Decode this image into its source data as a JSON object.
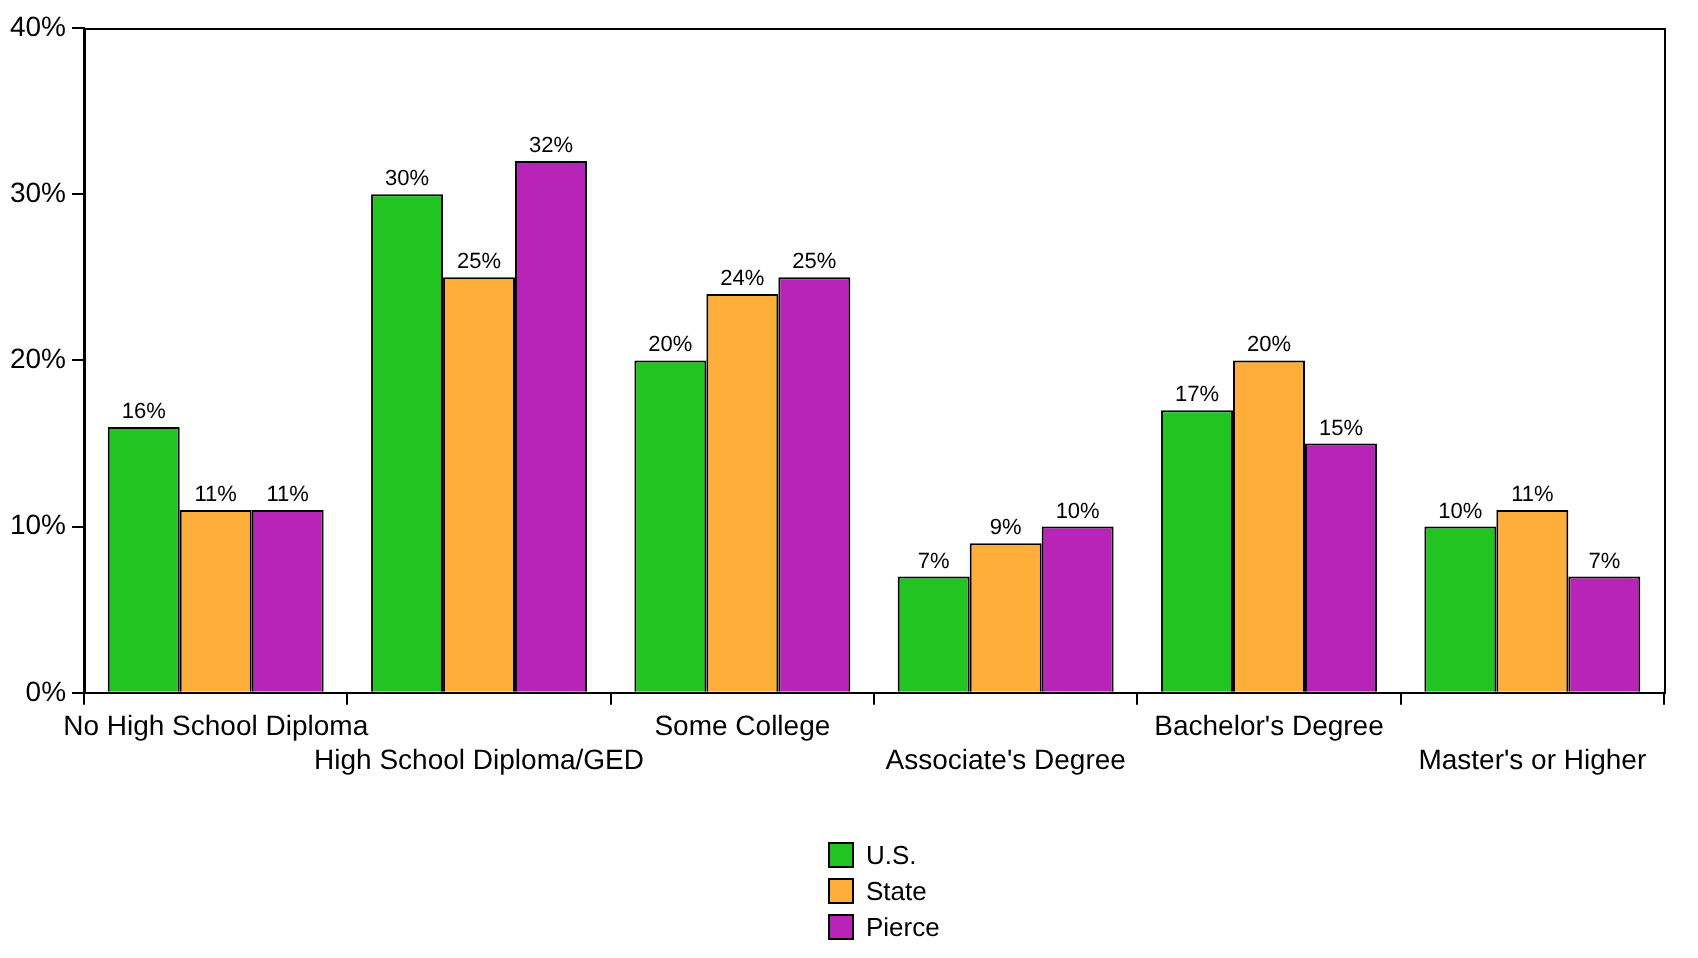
{
  "chart_data": {
    "type": "bar",
    "categories": [
      "No High School Diploma",
      "High School Diploma/GED",
      "Some College",
      "Associate's Degree",
      "Bachelor's Degree",
      "Master's or Higher"
    ],
    "series": [
      {
        "name": "U.S.",
        "color": "#22c422",
        "values": [
          16,
          30,
          20,
          7,
          17,
          10
        ],
        "value_labels": [
          "16%",
          "30%",
          "20%",
          "7%",
          "17%",
          "10%"
        ]
      },
      {
        "name": "State",
        "color": "#ffae3a",
        "values": [
          11,
          25,
          24,
          9,
          20,
          11
        ],
        "value_labels": [
          "11%",
          "25%",
          "24%",
          "9%",
          "20%",
          "11%"
        ]
      },
      {
        "name": "Pierce",
        "color": "#b824b8",
        "values": [
          11,
          32,
          25,
          10,
          15,
          7
        ],
        "value_labels": [
          "11%",
          "32%",
          "25%",
          "10%",
          "15%",
          "7%"
        ]
      }
    ],
    "ylim": [
      0,
      40
    ],
    "yticks": [
      {
        "value": 0,
        "label": "0%"
      },
      {
        "value": 10,
        "label": "10%"
      },
      {
        "value": 20,
        "label": "20%"
      },
      {
        "value": 30,
        "label": "30%"
      },
      {
        "value": 40,
        "label": "40%"
      }
    ],
    "legend": "bottom"
  }
}
